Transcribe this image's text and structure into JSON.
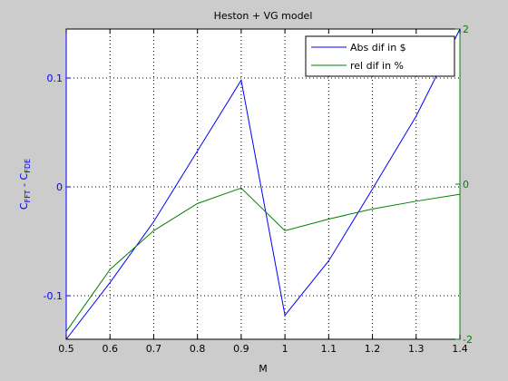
{
  "chart_data": {
    "type": "line",
    "title": "Heston + VG model",
    "xlabel": "M",
    "ylabel_main": "C",
    "ylabel_sub1": "FFT",
    "ylabel_sep": " - C",
    "ylabel_sub2": "FDE",
    "xlim": [
      0.5,
      1.4
    ],
    "ylim_left": [
      -0.14,
      0.145
    ],
    "ylim_right": [
      -2,
      2
    ],
    "x_ticks": [
      0.5,
      0.6,
      0.7,
      0.8,
      0.9,
      1.0,
      1.1,
      1.2,
      1.3,
      1.4
    ],
    "x_tick_labels": [
      "0.5",
      "0.6",
      "0.7",
      "0.8",
      "0.9",
      "1",
      "1.1",
      "1.2",
      "1.3",
      "1.4"
    ],
    "y_left_ticks": [
      -0.1,
      0,
      0.1
    ],
    "y_left_tick_labels": [
      "-0.1",
      "0",
      "0.1"
    ],
    "y_right_ticks": [
      -2,
      0,
      2
    ],
    "y_right_tick_labels": [
      "-2",
      "0",
      "2"
    ],
    "grid": true,
    "legend_position": "top-right",
    "colors": {
      "left_axis": "#0000ff",
      "right_axis": "#008000",
      "figure_bg": "#cccccc",
      "axes_bg": "#ffffff"
    },
    "series": [
      {
        "name": "Abs dif in $",
        "axis": "left",
        "color": "#0000ff",
        "x": [
          0.5,
          0.6,
          0.7,
          0.8,
          0.9,
          1.0,
          1.1,
          1.2,
          1.3,
          1.4
        ],
        "y": [
          -0.14,
          -0.088,
          -0.032,
          0.033,
          0.098,
          -0.118,
          -0.068,
          -0.002,
          0.065,
          0.145
        ]
      },
      {
        "name": "rel dif in %",
        "axis": "right",
        "color": "#008000",
        "x": [
          0.5,
          0.6,
          0.7,
          0.8,
          0.9,
          1.0,
          1.1,
          1.2,
          1.3,
          1.4
        ],
        "y": [
          -1.9,
          -1.1,
          -0.6,
          -0.25,
          -0.05,
          -0.6,
          -0.45,
          -0.32,
          -0.22,
          -0.13
        ]
      }
    ]
  }
}
